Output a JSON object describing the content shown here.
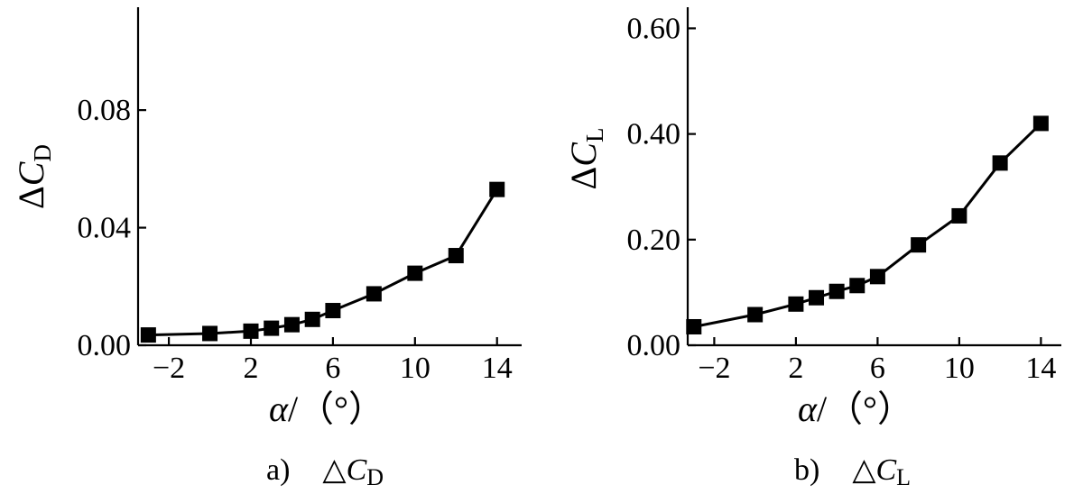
{
  "chart_data": [
    {
      "type": "line",
      "caption": {
        "prefix": "a)",
        "delta": "△",
        "symbol": "C",
        "subscript": "D"
      },
      "ylabel": {
        "delta": "Δ",
        "symbol": "C",
        "subscript": "D"
      },
      "xlabel": {
        "symbol": "α",
        "rest": "/（°）"
      },
      "xlim": [
        -3.5,
        15.2
      ],
      "ylim": [
        0.0,
        0.115
      ],
      "xticks": [
        -2,
        2,
        6,
        10,
        14
      ],
      "xtick_labels": [
        "−2",
        "2",
        "6",
        "10",
        "14"
      ],
      "yticks": [
        0.0,
        0.04,
        0.08
      ],
      "ytick_labels": [
        "0.00",
        "0.04",
        "0.08"
      ],
      "x": [
        -3.0,
        0.0,
        2.0,
        3.0,
        4.0,
        5.0,
        6.0,
        8.0,
        10.0,
        12.0,
        14.0
      ],
      "y": [
        0.0035,
        0.004,
        0.0048,
        0.0058,
        0.007,
        0.0088,
        0.0118,
        0.0175,
        0.0245,
        0.0305,
        0.053
      ],
      "marker": "square"
    },
    {
      "type": "line",
      "caption": {
        "prefix": "b)",
        "delta": "△",
        "symbol": "C",
        "subscript": "L"
      },
      "ylabel": {
        "delta": "Δ",
        "symbol": "C",
        "subscript": "L"
      },
      "xlabel": {
        "symbol": "α",
        "rest": "/（°）"
      },
      "xlim": [
        -3.3,
        15.0
      ],
      "ylim": [
        0.0,
        0.64
      ],
      "xticks": [
        -2,
        2,
        6,
        10,
        14
      ],
      "xtick_labels": [
        "−2",
        "2",
        "6",
        "10",
        "14"
      ],
      "yticks": [
        0.0,
        0.2,
        0.4,
        0.6
      ],
      "ytick_labels": [
        "0.00",
        "0.20",
        "0.40",
        "0.60"
      ],
      "x": [
        -3.0,
        0.0,
        2.0,
        3.0,
        4.0,
        5.0,
        6.0,
        8.0,
        10.0,
        12.0,
        14.0
      ],
      "y": [
        0.035,
        0.058,
        0.078,
        0.09,
        0.102,
        0.113,
        0.13,
        0.19,
        0.245,
        0.345,
        0.42
      ],
      "marker": "square"
    }
  ]
}
